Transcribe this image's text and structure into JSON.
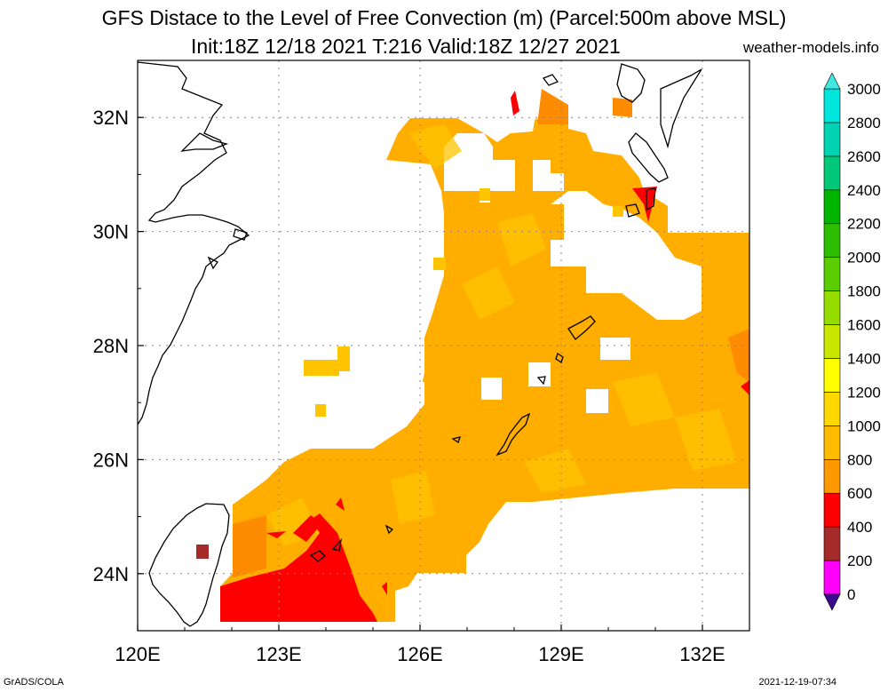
{
  "title": {
    "line1": "GFS Distace to the Level of Free Convection (m) (Parcel:500m above MSL)",
    "line2": "Init:18Z 12/18 2021 T:216 Valid:18Z 12/27 2021",
    "site": "weather-models.info"
  },
  "footer": {
    "left": "GrADS/COLA",
    "right": "2021-12-19-07:34"
  },
  "map": {
    "lon_range": [
      120,
      133
    ],
    "lat_range": [
      23,
      33
    ],
    "lon_ticks": [
      {
        "value": 120,
        "label": "120E"
      },
      {
        "value": 123,
        "label": "123E"
      },
      {
        "value": 126,
        "label": "126E"
      },
      {
        "value": 129,
        "label": "129E"
      },
      {
        "value": 132,
        "label": "132E"
      }
    ],
    "lat_ticks": [
      {
        "value": 24,
        "label": "24N"
      },
      {
        "value": 26,
        "label": "26N"
      },
      {
        "value": 28,
        "label": "28N"
      },
      {
        "value": 30,
        "label": "30N"
      },
      {
        "value": 32,
        "label": "32N"
      }
    ]
  },
  "colorbar": {
    "levels": [
      "0",
      "200",
      "400",
      "600",
      "800",
      "1000",
      "1200",
      "1400",
      "1600",
      "1800",
      "2000",
      "2200",
      "2400",
      "2600",
      "2800",
      "3000"
    ],
    "colors": [
      "#3a0a8c",
      "#ff00ff",
      "#a52a2a",
      "#ff0000",
      "#ff9900",
      "#ffbb00",
      "#ffd800",
      "#ffff00",
      "#c8e600",
      "#96dc00",
      "#5acd00",
      "#2dbe00",
      "#00b400",
      "#00c878",
      "#00d2b4",
      "#00e6dc",
      "#40e8e0"
    ],
    "under_color": "#3a0a8c",
    "over_color": "#40e8e0"
  }
}
